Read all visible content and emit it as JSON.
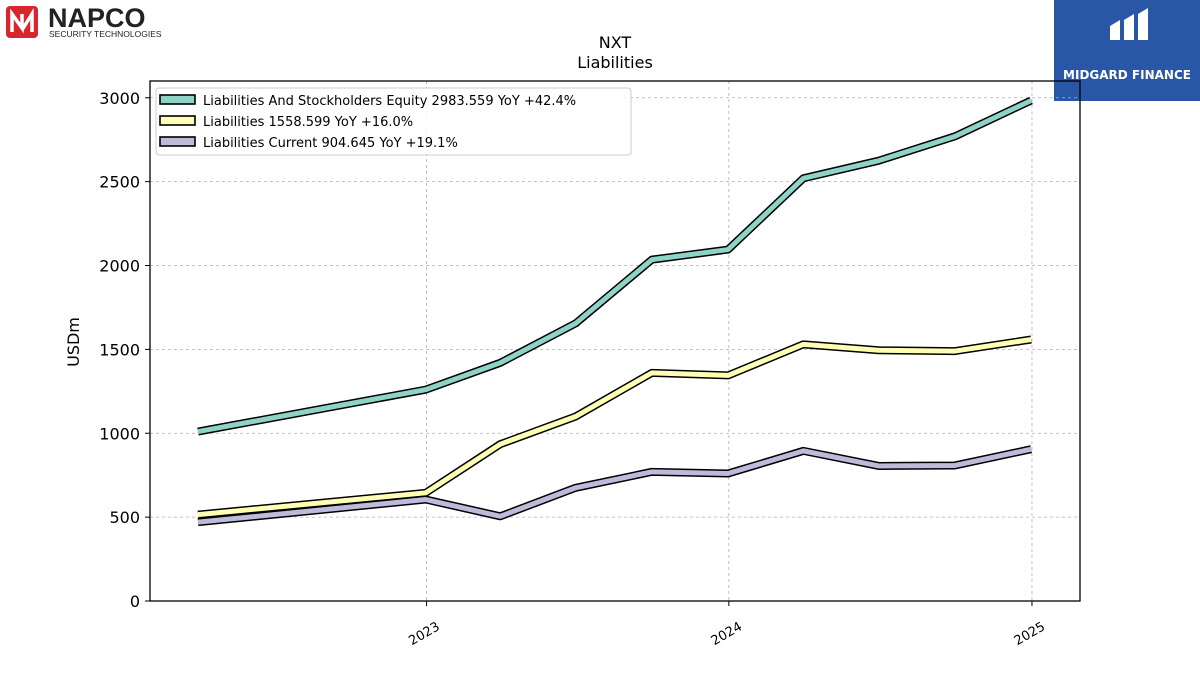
{
  "brand": {
    "napco_name": "NAPCO",
    "napco_tagline": "SECURITY TECHNOLOGIES",
    "napco_color": "#d7262e",
    "midgard_name": "MIDGARD FINANCE",
    "midgard_color": "#2a56a8"
  },
  "chart_data": {
    "type": "line",
    "title": "NXT",
    "subtitle": "Liabilities",
    "ylabel": "USDm",
    "xlabel": "",
    "ylim": [
      0,
      3100
    ],
    "yticks": [
      0,
      500,
      1000,
      1500,
      2000,
      2500,
      3000
    ],
    "xticks": [
      "2023",
      "2024",
      "2025"
    ],
    "grid": true,
    "legend_position": "top-left",
    "x": [
      "2022-03-31",
      "2022-12-31",
      "2023-03-31",
      "2023-06-30",
      "2023-09-30",
      "2023-12-31",
      "2024-03-31",
      "2024-06-30",
      "2024-09-30",
      "2024-12-31"
    ],
    "series": [
      {
        "name": "Liabilities And Stockholders Equity",
        "legend_label": "Liabilities And Stockholders Equity  2983.559 YoY +42.4%",
        "color": "#8dd3c7",
        "values": [
          1010,
          1260,
          1420,
          1655,
          2035,
          2095,
          2520,
          2625,
          2770,
          2984
        ]
      },
      {
        "name": "Liabilities",
        "legend_label": "Liabilities  1558.599 YoY +16.0%",
        "color": "#ffffb3",
        "values": [
          515,
          645,
          935,
          1100,
          1360,
          1345,
          1530,
          1495,
          1490,
          1559
        ]
      },
      {
        "name": "Liabilities Current",
        "legend_label": "Liabilities Current  904.645 YoY +19.1%",
        "color": "#bebada",
        "values": [
          470,
          605,
          505,
          675,
          770,
          760,
          895,
          805,
          808,
          905
        ]
      }
    ]
  }
}
